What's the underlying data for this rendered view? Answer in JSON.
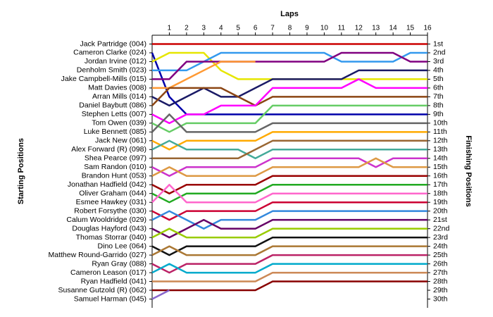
{
  "chart_data": {
    "type": "lap_chart",
    "x_label": "Laps",
    "y_label": "Starting Positions",
    "y2_label": "Finishing Positions",
    "x": [
      0,
      1,
      2,
      3,
      4,
      5,
      6,
      7,
      8,
      9,
      10,
      11,
      12,
      13,
      14,
      15,
      16
    ],
    "xlim": [
      0,
      16
    ],
    "xticks": [
      1,
      2,
      3,
      4,
      5,
      6,
      7,
      8,
      9,
      10,
      11,
      12,
      13,
      14,
      15,
      16
    ],
    "ylim": [
      0,
      31
    ],
    "invert_y": true,
    "yticks": [
      {
        "value": 1,
        "label": "1st"
      },
      {
        "value": 2,
        "label": "2nd"
      },
      {
        "value": 3,
        "label": "3rd"
      },
      {
        "value": 4,
        "label": "4th"
      },
      {
        "value": 5,
        "label": "5th"
      },
      {
        "value": 6,
        "label": "6th"
      },
      {
        "value": 7,
        "label": "7th"
      },
      {
        "value": 8,
        "label": "8th"
      },
      {
        "value": 9,
        "label": "9th"
      },
      {
        "value": 10,
        "label": "10th"
      },
      {
        "value": 11,
        "label": "11th"
      },
      {
        "value": 12,
        "label": "12th"
      },
      {
        "value": 13,
        "label": "13th"
      },
      {
        "value": 14,
        "label": "14th"
      },
      {
        "value": 15,
        "label": "15th"
      },
      {
        "value": 16,
        "label": "16th"
      },
      {
        "value": 17,
        "label": "17th"
      },
      {
        "value": 18,
        "label": "18th"
      },
      {
        "value": 19,
        "label": "19th"
      },
      {
        "value": 20,
        "label": "20th"
      },
      {
        "value": 21,
        "label": "21st"
      },
      {
        "value": 22,
        "label": "22nd"
      },
      {
        "value": 23,
        "label": "23rd"
      },
      {
        "value": 24,
        "label": "24th"
      },
      {
        "value": 25,
        "label": "25th"
      },
      {
        "value": 26,
        "label": "26th"
      },
      {
        "value": 27,
        "label": "27th"
      },
      {
        "value": 28,
        "label": "28th"
      },
      {
        "value": 29,
        "label": "29th"
      },
      {
        "value": 30,
        "label": "30th"
      }
    ],
    "series": [
      {
        "name": "Jack Partridge (004)",
        "color": "#cc0000",
        "values": [
          1,
          1,
          1,
          1,
          1,
          1,
          1,
          1,
          1,
          1,
          1,
          1,
          1,
          1,
          1,
          1,
          1
        ]
      },
      {
        "name": "Cameron Clarke (024)",
        "color": "#0000aa",
        "values": [
          2,
          7,
          9,
          9,
          9,
          9,
          9,
          9,
          9,
          9,
          9,
          9,
          9,
          9,
          9,
          9,
          9
        ]
      },
      {
        "name": "Jordan Irvine (012)",
        "color": "#e6e600",
        "values": [
          3,
          2,
          2,
          2,
          4,
          5,
          5,
          5,
          5,
          5,
          5,
          5,
          5,
          5,
          5,
          5,
          5
        ]
      },
      {
        "name": "Denholm Smith (023)",
        "color": "#3399ee",
        "values": [
          4,
          4,
          4,
          3,
          2,
          2,
          2,
          2,
          2,
          2,
          2,
          3,
          3,
          3,
          3,
          2,
          2
        ]
      },
      {
        "name": "Jake Campbell-Mills (015)",
        "color": "#800080",
        "values": [
          5,
          5,
          3,
          3,
          3,
          3,
          3,
          3,
          3,
          3,
          3,
          2,
          2,
          2,
          2,
          3,
          3
        ]
      },
      {
        "name": "Matt Davies (008)",
        "color": "#ff9933",
        "values": [
          6,
          6,
          5,
          4,
          3,
          3,
          3,
          null,
          null,
          null,
          null,
          null,
          null,
          null,
          null,
          null,
          null
        ]
      },
      {
        "name": "Arran Mills (014)",
        "color": "#1a1a66",
        "values": [
          7,
          8,
          7,
          6,
          7,
          7,
          6,
          5,
          5,
          5,
          5,
          5,
          4,
          4,
          4,
          4,
          4
        ]
      },
      {
        "name": "Daniel Baybutt (086)",
        "color": "#8b4513",
        "values": [
          8,
          6,
          6,
          6,
          6,
          7,
          8,
          7,
          7,
          7,
          7,
          7,
          7,
          7,
          7,
          7,
          7
        ]
      },
      {
        "name": "Stephen Letts (007)",
        "color": "#ff00ff",
        "values": [
          9,
          10,
          9,
          9,
          8,
          8,
          8,
          6,
          6,
          6,
          6,
          6,
          5,
          6,
          6,
          6,
          6
        ]
      },
      {
        "name": "Tom Owen (039)",
        "color": "#66cc66",
        "values": [
          10,
          11,
          10,
          10,
          10,
          10,
          10,
          8,
          8,
          8,
          8,
          8,
          8,
          8,
          8,
          8,
          8
        ]
      },
      {
        "name": "Luke Bennett (085)",
        "color": "#666666",
        "values": [
          11,
          9,
          11,
          11,
          11,
          11,
          11,
          10,
          10,
          10,
          10,
          10,
          10,
          10,
          10,
          10,
          10
        ]
      },
      {
        "name": "Jack New (061)",
        "color": "#ffaa00",
        "values": [
          12,
          13,
          12,
          12,
          12,
          12,
          12,
          11,
          11,
          11,
          11,
          11,
          11,
          11,
          11,
          11,
          11
        ]
      },
      {
        "name": "Alex Forward  (R) (098)",
        "color": "#44aa99",
        "values": [
          13,
          12,
          13,
          13,
          13,
          13,
          14,
          13,
          13,
          13,
          13,
          13,
          13,
          13,
          13,
          13,
          13
        ]
      },
      {
        "name": "Shea Pearce (097)",
        "color": "#996633",
        "values": [
          14,
          14,
          14,
          14,
          14,
          14,
          13,
          12,
          12,
          12,
          12,
          12,
          12,
          12,
          12,
          12,
          12
        ]
      },
      {
        "name": "Sam Randon (010)",
        "color": "#cc33cc",
        "values": [
          15,
          16,
          15,
          15,
          15,
          15,
          15,
          14,
          14,
          14,
          14,
          14,
          14,
          15,
          14,
          14,
          14
        ]
      },
      {
        "name": "Brandon Hunt (053)",
        "color": "#dd9944",
        "values": [
          16,
          15,
          16,
          16,
          16,
          16,
          16,
          15,
          15,
          15,
          15,
          15,
          15,
          14,
          15,
          15,
          15
        ]
      },
      {
        "name": "Jonathan Hadfield (042)",
        "color": "#990000",
        "values": [
          17,
          18,
          17,
          17,
          17,
          17,
          17,
          16,
          16,
          16,
          16,
          16,
          16,
          16,
          16,
          16,
          16
        ]
      },
      {
        "name": "Oliver Graham (044)",
        "color": "#22aa22",
        "values": [
          18,
          19,
          18,
          18,
          18,
          18,
          18,
          17,
          17,
          17,
          17,
          17,
          17,
          17,
          17,
          17,
          17
        ]
      },
      {
        "name": "Esmee Hawkey (031)",
        "color": "#ff66cc",
        "values": [
          19,
          17,
          19,
          19,
          19,
          19,
          19,
          18,
          18,
          18,
          18,
          18,
          18,
          18,
          18,
          18,
          18
        ]
      },
      {
        "name": "Robert Forsythe (030)",
        "color": "#cc0033",
        "values": [
          20,
          21,
          20,
          20,
          20,
          20,
          20,
          19,
          19,
          19,
          19,
          19,
          19,
          19,
          19,
          19,
          19
        ]
      },
      {
        "name": "Calum Wooldridge (029)",
        "color": "#3388dd",
        "values": [
          21,
          20,
          21,
          22,
          21,
          21,
          21,
          20,
          20,
          20,
          20,
          20,
          20,
          20,
          20,
          20,
          20
        ]
      },
      {
        "name": "Douglas Hayford (043)",
        "color": "#660066",
        "values": [
          22,
          23,
          22,
          21,
          22,
          22,
          22,
          21,
          21,
          21,
          21,
          21,
          21,
          21,
          21,
          21,
          21
        ]
      },
      {
        "name": "Thomas Storrar (040)",
        "color": "#99cc00",
        "values": [
          23,
          22,
          23,
          23,
          23,
          23,
          23,
          22,
          22,
          22,
          22,
          22,
          22,
          22,
          22,
          22,
          22
        ]
      },
      {
        "name": "Dino Lee (064)",
        "color": "#111111",
        "values": [
          24,
          25,
          24,
          24,
          24,
          24,
          24,
          23,
          23,
          23,
          23,
          23,
          23,
          23,
          23,
          23,
          23
        ]
      },
      {
        "name": "Matthew Round-Garrido (027)",
        "color": "#aa7733",
        "values": [
          25,
          24,
          25,
          25,
          25,
          25,
          25,
          24,
          24,
          24,
          24,
          24,
          24,
          24,
          24,
          24,
          24
        ]
      },
      {
        "name": "Ryan Gray (088)",
        "color": "#bb2266",
        "values": [
          26,
          27,
          26,
          26,
          26,
          26,
          26,
          25,
          25,
          25,
          25,
          25,
          25,
          25,
          25,
          25,
          25
        ]
      },
      {
        "name": "Cameron Leason (017)",
        "color": "#00aacc",
        "values": [
          27,
          26,
          27,
          27,
          27,
          27,
          27,
          26,
          26,
          26,
          26,
          26,
          26,
          26,
          26,
          26,
          26
        ]
      },
      {
        "name": "Ryan Hadfield (041)",
        "color": "#cc8855",
        "values": [
          28,
          28,
          28,
          28,
          28,
          28,
          28,
          27,
          27,
          27,
          27,
          27,
          27,
          27,
          27,
          27,
          27
        ]
      },
      {
        "name": "Susanne Gutzold (R) (062)",
        "color": "#880000",
        "values": [
          29,
          29,
          29,
          29,
          29,
          29,
          29,
          28,
          28,
          28,
          28,
          28,
          28,
          28,
          28,
          28,
          28
        ]
      },
      {
        "name": "Samuel Harman (045)",
        "color": "#8866cc",
        "values": [
          30,
          29,
          null,
          null,
          null,
          null,
          null,
          null,
          null,
          null,
          null,
          null,
          null,
          null,
          null,
          null,
          null
        ]
      }
    ]
  }
}
